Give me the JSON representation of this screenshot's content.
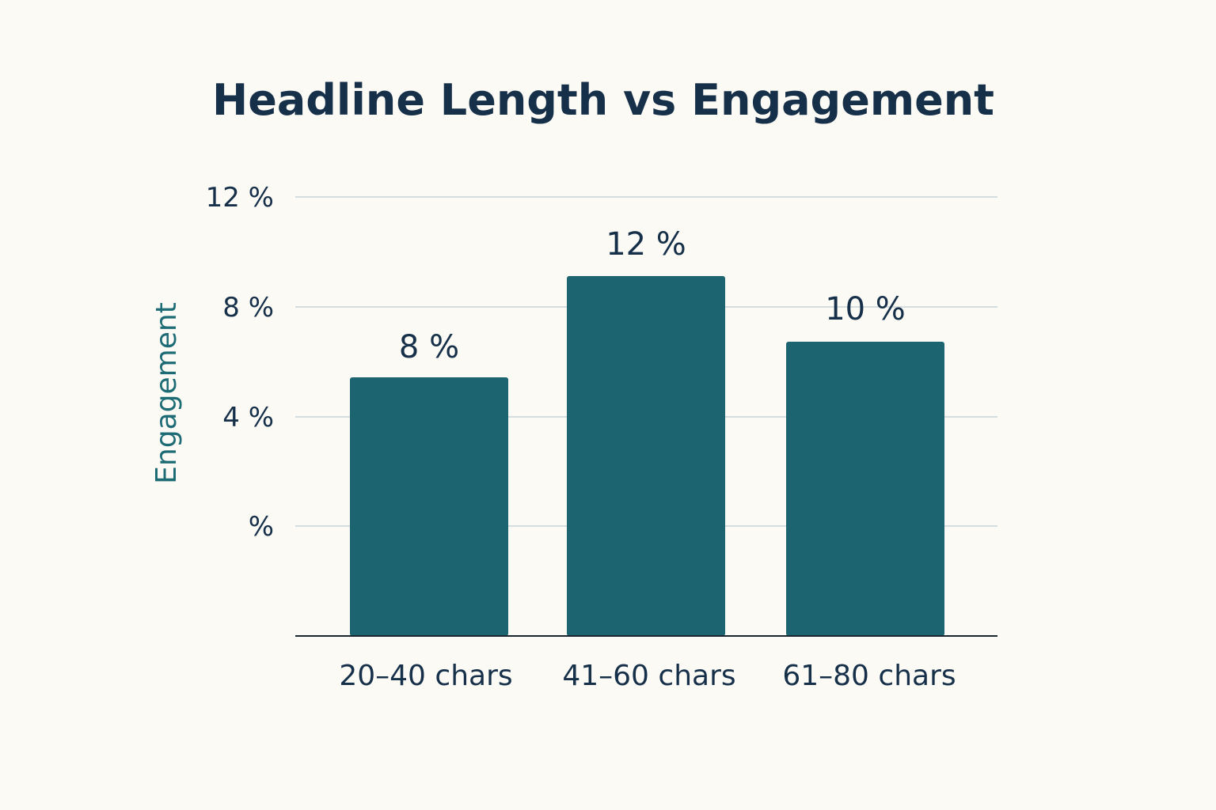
{
  "chart_data": {
    "type": "bar",
    "title": "Headline Length vs Engagement",
    "xlabel": "",
    "ylabel": "Engagement",
    "categories": [
      "20–40 chars",
      "41–60 chars",
      "61–80 chars"
    ],
    "values": [
      8,
      12,
      10
    ],
    "data_labels": [
      "8 %",
      "12 %",
      "10 %"
    ],
    "y_ticks": [
      {
        "value": 12,
        "label": "12 %"
      },
      {
        "value": 8,
        "label": "8 %"
      },
      {
        "value": 4,
        "label": "4 %"
      },
      {
        "value": 0,
        "label": "%"
      }
    ],
    "ylim": [
      0,
      16
    ],
    "grid": true,
    "legend": "none",
    "colors": {
      "bar": "#1c6570",
      "text": "#17304a",
      "ylabel": "#1d6b75",
      "grid": "#c9d3d8",
      "background": "#fbfaf5"
    }
  }
}
